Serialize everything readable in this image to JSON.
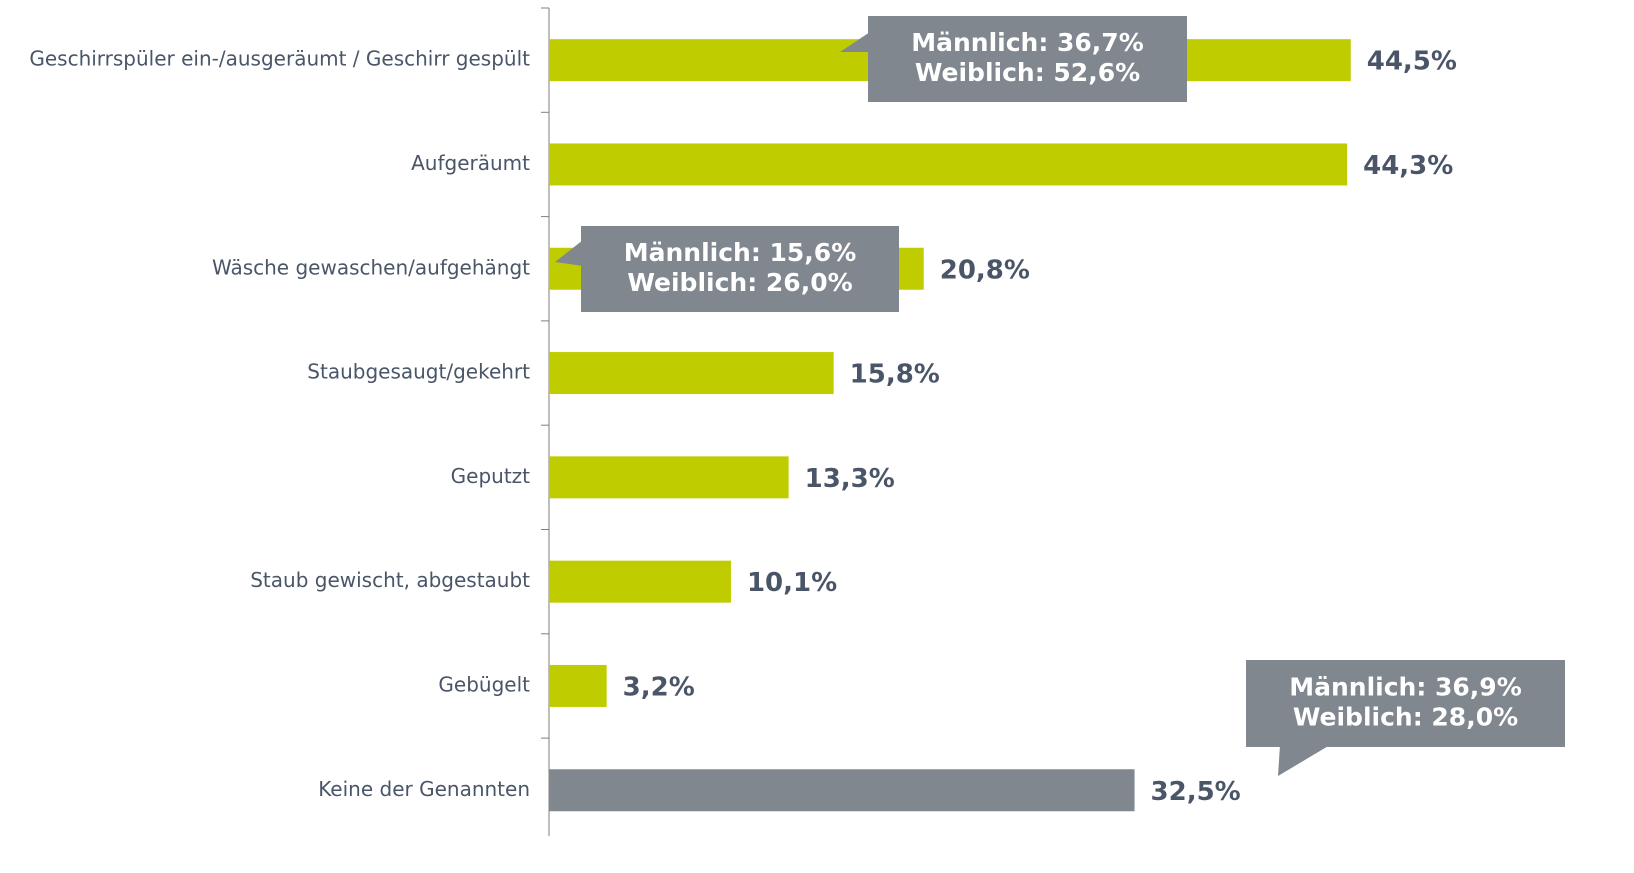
{
  "chart_data": {
    "type": "bar",
    "orientation": "horizontal",
    "categories": [
      "Geschirrspüler ein-/ausgeräumt / Geschirr gespült",
      "Aufgeräumt",
      "Wäsche gewaschen/aufgehängt",
      "Staubgesaugt/gekehrt",
      "Geputzt",
      "Staub gewischt, abgestaubt",
      "Gebügelt",
      "Keine der Genannten"
    ],
    "values": [
      44.5,
      44.3,
      20.8,
      15.8,
      13.3,
      10.1,
      3.2,
      32.5
    ],
    "value_labels": [
      "44,5%",
      "44,3%",
      "20,8%",
      "15,8%",
      "13,3%",
      "10,1%",
      "3,2%",
      "32,5%"
    ],
    "colors": [
      "#bfcd00",
      "#bfcd00",
      "#bfcd00",
      "#bfcd00",
      "#bfcd00",
      "#bfcd00",
      "#bfcd00",
      "#80878f"
    ],
    "xlim": [
      0,
      60
    ],
    "annotations": [
      [
        "Männlich: 36,7%",
        "Weiblich: 52,6%"
      ],
      [
        "Männlich: 15,6%",
        "Weiblich: 26,0%"
      ],
      [
        "Männlich: 36,9%",
        "Weiblich: 28,0%"
      ]
    ]
  }
}
